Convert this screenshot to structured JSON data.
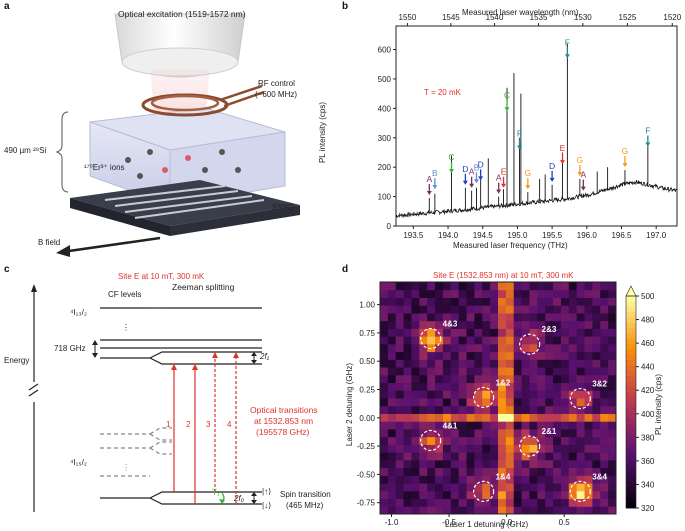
{
  "panel_a": {
    "label": "a",
    "optical_excitation": "Optical excitation (1519-1572 nm)",
    "rf_control": "RF control",
    "rf_freq": "(~600 MHz)",
    "si_label": "490 µm ²⁸Si",
    "ions_label": "¹⁷⁰Er³⁺ ions",
    "sspd": "SSPD",
    "bfield": "B field"
  },
  "panel_b": {
    "label": "b",
    "top_axis_label": "Measured laser wavelength (nm)",
    "temperature": "T = 20 mK",
    "colors": {
      "A": "#7b2d5b",
      "B": "#5b8fd6",
      "C": "#2eb82e",
      "D": "#1f3fbf",
      "E": "#e0312b",
      "F": "#1b8a8a",
      "G": "#f29a1c"
    },
    "chart_data": {
      "type": "line",
      "title": "",
      "xlabel": "Measured laser frequency (THz)",
      "ylabel": "PL intensity (cps)",
      "xlim": [
        193.25,
        197.3
      ],
      "ylim": [
        0,
        680
      ],
      "x_ticks": [
        "193.5",
        "194.0",
        "194.5",
        "195.0",
        "195.5",
        "196.0",
        "196.5",
        "197.0"
      ],
      "y_ticks": [
        "0",
        "100",
        "200",
        "300",
        "400",
        "500",
        "600"
      ],
      "top_ticks": [
        "1550",
        "1545",
        "1540",
        "1535",
        "1530",
        "1525",
        "1520"
      ],
      "baseline": [
        [
          193.25,
          35
        ],
        [
          193.6,
          42
        ],
        [
          194.0,
          50
        ],
        [
          194.5,
          62
        ],
        [
          194.9,
          72
        ],
        [
          195.3,
          82
        ],
        [
          195.7,
          92
        ],
        [
          196.0,
          105
        ],
        [
          196.3,
          125
        ],
        [
          196.5,
          140
        ],
        [
          196.7,
          150
        ],
        [
          196.9,
          140
        ],
        [
          197.1,
          128
        ],
        [
          197.3,
          120
        ]
      ],
      "peaks": [
        {
          "site": "A",
          "x": 193.73,
          "y": 95,
          "arrow_y": 95
        },
        {
          "site": "B",
          "x": 193.81,
          "y": 110,
          "arrow_y": 115
        },
        {
          "site": "C",
          "x": 194.05,
          "y": 240,
          "arrow_y": 170
        },
        {
          "site": "D",
          "x": 194.25,
          "y": 130,
          "arrow_y": 130
        },
        {
          "site": "A",
          "x": 194.34,
          "y": 120,
          "arrow_y": 120
        },
        {
          "site": "B",
          "x": 194.41,
          "y": 130,
          "arrow_y": 135
        },
        {
          "site": "D",
          "x": 194.47,
          "y": 160,
          "arrow_y": 145
        },
        {
          "site": "A",
          "x": 194.73,
          "y": 100,
          "arrow_y": 100
        },
        {
          "site": "E",
          "x": 194.8,
          "y": 125,
          "arrow_y": 120
        },
        {
          "site": "C",
          "x": 194.85,
          "y": 470,
          "arrow_y": 380
        },
        {
          "site": "F",
          "x": 195.03,
          "y": 300,
          "arrow_y": 250
        },
        {
          "site": "G",
          "x": 195.15,
          "y": 115,
          "arrow_y": 115
        },
        {
          "site": "D",
          "x": 195.5,
          "y": 140,
          "arrow_y": 140
        },
        {
          "site": "E",
          "x": 195.65,
          "y": 250,
          "arrow_y": 200
        },
        {
          "site": "F",
          "x": 195.72,
          "y": 620,
          "arrow_y": 560
        },
        {
          "site": "G",
          "x": 195.9,
          "y": 160,
          "arrow_y": 160
        },
        {
          "site": "A",
          "x": 195.95,
          "y": 110,
          "arrow_y": 110
        },
        {
          "site": "G",
          "x": 196.55,
          "y": 190,
          "arrow_y": 190
        },
        {
          "site": "F",
          "x": 196.88,
          "y": 290,
          "arrow_y": 260
        }
      ],
      "extra_peaks": [
        {
          "x": 194.58,
          "y": 230
        },
        {
          "x": 194.95,
          "y": 520
        },
        {
          "x": 195.05,
          "y": 450
        },
        {
          "x": 195.32,
          "y": 160
        },
        {
          "x": 195.4,
          "y": 175
        },
        {
          "x": 196.15,
          "y": 185
        },
        {
          "x": 196.3,
          "y": 200
        }
      ]
    }
  },
  "panel_c": {
    "label": "c",
    "title": "Site E at 10 mT, 300 mK",
    "energy": "Energy",
    "cf_levels": "CF levels",
    "zeeman": "Zeeman splitting",
    "upper_state": "⁴I₁₃/₂",
    "lower_state": "⁴I₁₅/₂",
    "gap": "718 GHz",
    "f1": "2f₁",
    "f0": "2f₀",
    "transition_numbers": [
      "1",
      "2",
      "3",
      "4"
    ],
    "optical_1": "Optical transitions",
    "optical_2": "at 1532.853 nm",
    "optical_3": "(195578 GHz)",
    "t1": "T₁",
    "spin_up": "|↑⟩",
    "spin_down": "|↓⟩",
    "spin_transition": "Spin transition",
    "spin_freq": "(465 MHz)"
  },
  "panel_d": {
    "label": "d",
    "title": "Site E (1532.853 nm) at 10 mT, 300 mK",
    "colorbar_label": "PL intensity (cps)",
    "colorbar_ticks": [
      "320",
      "340",
      "360",
      "380",
      "400",
      "420",
      "440",
      "460",
      "480",
      "500"
    ],
    "chart_data": {
      "type": "heatmap",
      "xlabel": "Laser 1 detuning (GHz)",
      "ylabel": "Laser 2 detuning (GHz)",
      "xlim": [
        -1.1,
        0.95
      ],
      "ylim": [
        -0.85,
        1.2
      ],
      "zlim": [
        320,
        500
      ],
      "x_ticks": [
        "-1.0",
        "-0.5",
        "0.0",
        "0.5"
      ],
      "y_ticks": [
        "-0.75",
        "-0.50",
        "-0.25",
        "0.00",
        "0.25",
        "0.50",
        "0.75",
        "1.00"
      ],
      "hotspots": [
        {
          "label": "4&3",
          "x": -0.66,
          "y": 0.7,
          "value": 490
        },
        {
          "label": "2&3",
          "x": 0.2,
          "y": 0.65,
          "value": 430
        },
        {
          "label": "1&2",
          "x": -0.2,
          "y": 0.18,
          "value": 470
        },
        {
          "label": "3&2",
          "x": 0.64,
          "y": 0.17,
          "value": 440
        },
        {
          "label": "4&1",
          "x": -0.66,
          "y": -0.2,
          "value": 440
        },
        {
          "label": "2&1",
          "x": 0.2,
          "y": -0.25,
          "value": 470
        },
        {
          "label": "1&4",
          "x": -0.2,
          "y": -0.65,
          "value": 430
        },
        {
          "label": "3&4",
          "x": 0.64,
          "y": -0.65,
          "value": 490
        }
      ]
    }
  }
}
